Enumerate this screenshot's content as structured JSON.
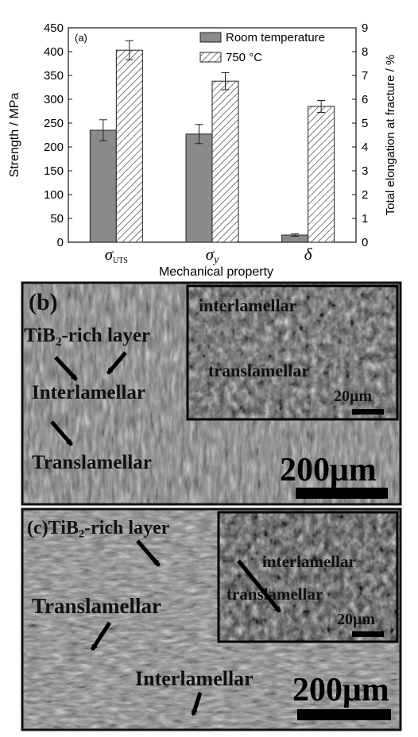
{
  "chart_data": {
    "type": "bar",
    "panel_label": "(a)",
    "xlabel": "Mechanical property",
    "ylabel_left": "Strength / MPa",
    "ylabel_right": "Total elongation at fracture / %",
    "ylim_left": [
      0,
      450
    ],
    "ylim_right": [
      0,
      9
    ],
    "yticks_left": [
      "0",
      "50",
      "100",
      "150",
      "200",
      "250",
      "300",
      "350",
      "400",
      "450"
    ],
    "yticks_right": [
      "0",
      "1",
      "2",
      "3",
      "4",
      "5",
      "6",
      "7",
      "8",
      "9"
    ],
    "categories": [
      {
        "symbol": "σ",
        "subscript": "UTS",
        "axis": "left"
      },
      {
        "symbol": "σ",
        "subscript": "y",
        "axis": "left"
      },
      {
        "symbol": "δ",
        "subscript": "",
        "axis": "right"
      }
    ],
    "series": [
      {
        "name": "Room temperature",
        "values": [
          235,
          227,
          0.3
        ],
        "errors": [
          22,
          20,
          0.05
        ],
        "fill": "#8a8a8a"
      },
      {
        "name": "750 °C",
        "values": [
          403,
          338,
          5.7
        ],
        "errors": [
          20,
          18,
          0.25
        ],
        "fill": "hatched"
      }
    ],
    "grid": false,
    "legend_position": "top-right"
  },
  "micrographs": [
    {
      "panel_label": "(b)",
      "labels": [
        "TiB₂-rich layer",
        "Interlamellar",
        "Translamellar"
      ],
      "inset_labels": [
        "interlamellar",
        "translamellar"
      ],
      "inset_scale": "20μm",
      "scale": "200μm"
    },
    {
      "panel_label": "(c)",
      "labels": [
        "TiB₂-rich layer",
        "Translamellar",
        "Interlamellar"
      ],
      "inset_labels": [
        "interlamellar",
        "translamellar"
      ],
      "inset_scale": "20μm",
      "scale": "200μm"
    }
  ]
}
